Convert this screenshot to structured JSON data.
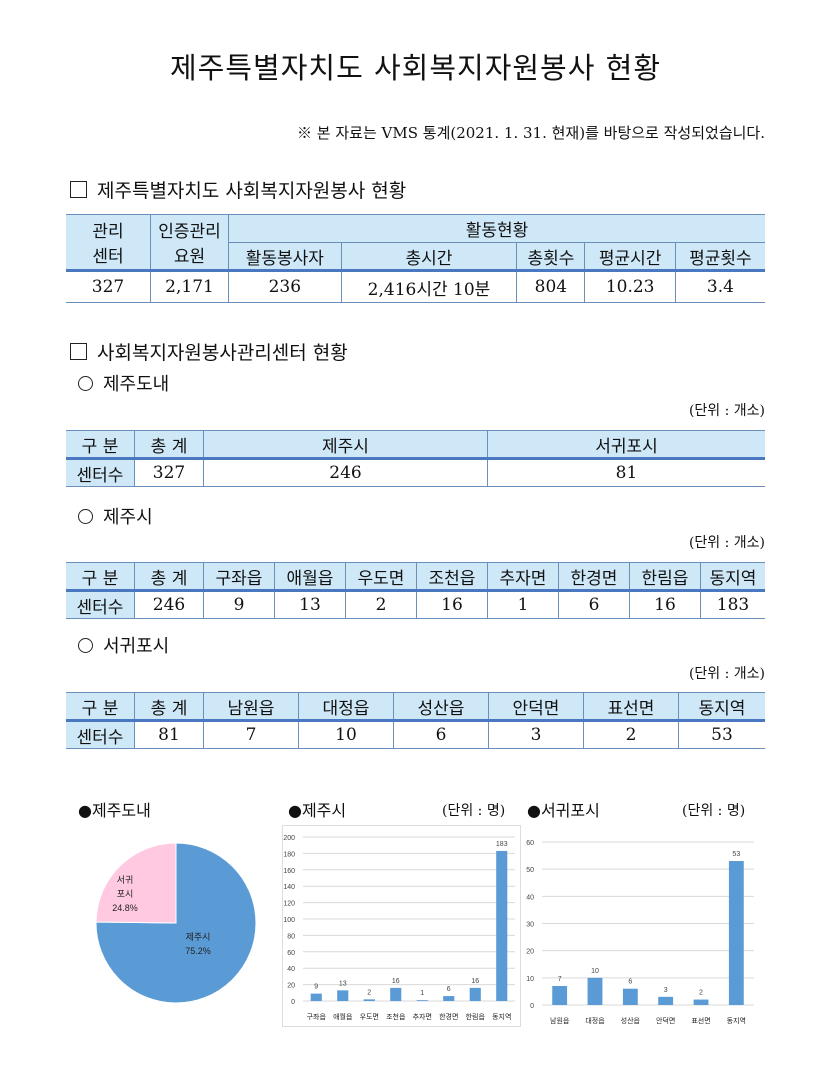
{
  "title": "제주특별자치도 사회복지자원봉사 현황",
  "note": "※ 본 자료는 VMS 통계(2021. 1. 31. 현재)를 바탕으로 작성되었습니다.",
  "section1": {
    "heading": "제주특별자치도 사회복지자원봉사 현황",
    "headers": {
      "center": "관리센터",
      "center_l1": "관리",
      "center_l2": "센터",
      "staff_l1": "인증관리",
      "staff_l2": "요원",
      "activity": "활동현황",
      "sub": [
        "활동봉사자",
        "총시간",
        "총횟수",
        "평균시간",
        "평균횟수"
      ]
    },
    "row": [
      "327",
      "2,171",
      "236",
      "2,416시간 10분",
      "804",
      "10.23",
      "3.4"
    ]
  },
  "section2": {
    "heading": "사회복지자원봉사관리센터 현황",
    "unit": "(단위 : 개소)",
    "jeju_do": {
      "label": "제주도내",
      "headers": [
        "구 분",
        "총 계",
        "제주시",
        "서귀포시"
      ],
      "row": [
        "센터수",
        "327",
        "246",
        "81"
      ]
    },
    "jeju_si": {
      "label": "제주시",
      "headers": [
        "구 분",
        "총 계",
        "구좌읍",
        "애월읍",
        "우도면",
        "조천읍",
        "추자면",
        "한경면",
        "한림읍",
        "동지역"
      ],
      "row": [
        "센터수",
        "246",
        "9",
        "13",
        "2",
        "16",
        "1",
        "6",
        "16",
        "183"
      ]
    },
    "seogwipo": {
      "label": "서귀포시",
      "headers": [
        "구 분",
        "총 계",
        "남원읍",
        "대정읍",
        "성산읍",
        "안덕면",
        "표선면",
        "동지역"
      ],
      "row": [
        "센터수",
        "81",
        "7",
        "10",
        "6",
        "3",
        "2",
        "53"
      ]
    }
  },
  "chart_titles": {
    "pie": "●제주도내",
    "bar1": "●제주시",
    "bar2": "●서귀포시",
    "unit": "(단위 : 명)"
  },
  "chart_data": [
    {
      "type": "pie",
      "categories": [
        "제주시",
        "서귀포시"
      ],
      "labels": [
        "제주시",
        "서귀\n포시"
      ],
      "values": [
        75.2,
        24.8
      ],
      "value_labels": [
        "75.2%",
        "24.8%"
      ],
      "colors": [
        "#5b9bd5",
        "#ffc9e1"
      ]
    },
    {
      "type": "bar",
      "categories": [
        "구좌읍",
        "애월읍",
        "우도면",
        "조천읍",
        "추자면",
        "한경면",
        "한림읍",
        "동지역"
      ],
      "values": [
        9,
        13,
        2,
        16,
        1,
        6,
        16,
        183
      ],
      "ylim": [
        0,
        200
      ],
      "yticks": [
        0,
        20,
        40,
        60,
        80,
        100,
        120,
        140,
        160,
        180,
        200
      ],
      "grid": true,
      "color": "#5b9bd5"
    },
    {
      "type": "bar",
      "categories": [
        "남원읍",
        "대정읍",
        "성산읍",
        "안덕면",
        "표선면",
        "동지역"
      ],
      "values": [
        7,
        10,
        6,
        3,
        2,
        53
      ],
      "ylim": [
        0,
        60
      ],
      "yticks": [
        0,
        10,
        20,
        30,
        40,
        50,
        60
      ],
      "grid": true,
      "color": "#5b9bd5"
    }
  ]
}
